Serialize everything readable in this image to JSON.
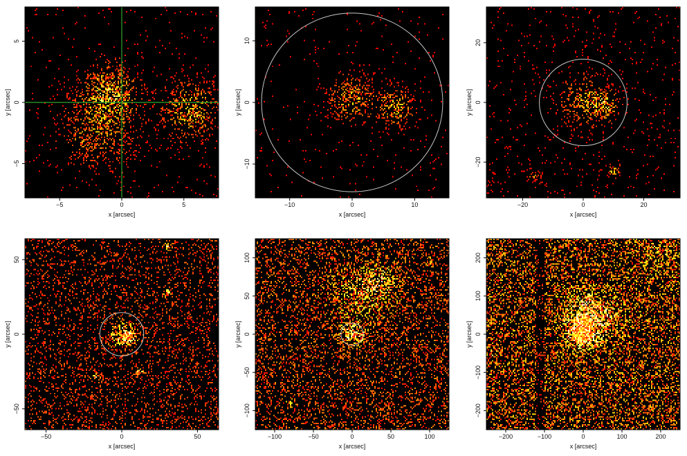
{
  "chart_data": [
    {
      "type": "image",
      "panel": "top-left",
      "xlabel": "x [arcsec]",
      "ylabel": "y [arcsec]",
      "xlim": [
        -7.8,
        7.8
      ],
      "ylim": [
        -7.8,
        7.8
      ],
      "xticks": [
        -5,
        0,
        5
      ],
      "yticks": [
        -5,
        0,
        5
      ],
      "overlay": {
        "kind": "crosshair",
        "x": 0,
        "y": 0,
        "color": "#2ea82e"
      },
      "background_level": 0.02,
      "sources": [
        {
          "x": -1.0,
          "y": 0.8,
          "sigma": 1.4,
          "amp": 0.5
        },
        {
          "x": 5.5,
          "y": -0.7,
          "sigma": 1.4,
          "amp": 0.45
        },
        {
          "x": -2.0,
          "y": -2.5,
          "sigma": 1.8,
          "amp": 0.3
        }
      ]
    },
    {
      "type": "image",
      "panel": "top-middle",
      "xlabel": "x [arcsec]",
      "ylabel": "y [arcsec]",
      "xlim": [
        -15.5,
        15.5
      ],
      "ylim": [
        -15.5,
        15.5
      ],
      "xticks": [
        -10,
        0,
        10
      ],
      "yticks": [
        -10,
        0,
        10
      ],
      "overlay": {
        "kind": "circle",
        "x": 0,
        "y": 0,
        "r": 14.5,
        "color": "#c8c8c8"
      },
      "background_level": 0.015,
      "sources": [
        {
          "x": 0,
          "y": 0.5,
          "sigma": 2.5,
          "amp": 0.35
        },
        {
          "x": 7.0,
          "y": -0.8,
          "sigma": 2.0,
          "amp": 0.4
        }
      ]
    },
    {
      "type": "image",
      "panel": "top-right",
      "xlabel": "x [arcsec]",
      "ylabel": "y [arcsec]",
      "xlim": [
        -32,
        32
      ],
      "ylim": [
        -32,
        32
      ],
      "xticks": [
        -20,
        0,
        20
      ],
      "yticks": [
        -20,
        0,
        20
      ],
      "overlay": {
        "kind": "circle",
        "x": 0,
        "y": 0,
        "r": 14.5,
        "color": "#c8c8c8"
      },
      "background_level": 0.03,
      "sources": [
        {
          "x": 0,
          "y": 0,
          "sigma": 5,
          "amp": 0.35
        },
        {
          "x": 7,
          "y": -1,
          "sigma": 3,
          "amp": 0.4
        },
        {
          "x": 10,
          "y": -23,
          "sigma": 1.2,
          "amp": 0.4
        },
        {
          "x": -16,
          "y": -25,
          "sigma": 1.2,
          "amp": 0.35
        }
      ]
    },
    {
      "type": "image",
      "panel": "bottom-left",
      "xlabel": "x [arcsec]",
      "ylabel": "y [arcsec]",
      "xlim": [
        -64,
        64
      ],
      "ylim": [
        -64,
        64
      ],
      "xticks": [
        -50,
        0,
        50
      ],
      "yticks": [
        -50,
        0,
        50
      ],
      "overlay": {
        "kind": "circle",
        "x": 0,
        "y": 0,
        "r": 14.5,
        "color": "#c8c8c8"
      },
      "background_level": 0.16,
      "sources": [
        {
          "x": 0,
          "y": 0,
          "sigma": 6,
          "amp": 0.5
        },
        {
          "x": 5,
          "y": -2,
          "sigma": 3,
          "amp": 0.55
        },
        {
          "x": 30,
          "y": 28,
          "sigma": 1.6,
          "amp": 0.55
        },
        {
          "x": 30,
          "y": 59,
          "sigma": 1.6,
          "amp": 0.55
        },
        {
          "x": -17,
          "y": -28,
          "sigma": 1.6,
          "amp": 0.5
        },
        {
          "x": 12,
          "y": -25,
          "sigma": 1.6,
          "amp": 0.5
        }
      ]
    },
    {
      "type": "image",
      "panel": "bottom-middle",
      "xlabel": "x [arcsec]",
      "ylabel": "y [arcsec]",
      "xlim": [
        -125,
        125
      ],
      "ylim": [
        -125,
        125
      ],
      "xticks": [
        -100,
        -50,
        0,
        50,
        100
      ],
      "yticks": [
        -100,
        -50,
        0,
        50,
        100
      ],
      "overlay": {
        "kind": "circle",
        "x": 0,
        "y": 0,
        "r": 14.5,
        "color": "#c8c8c8"
      },
      "background_level": 0.22,
      "sources": [
        {
          "x": 0,
          "y": 0,
          "sigma": 10,
          "amp": 0.55
        },
        {
          "x": 10,
          "y": 55,
          "sigma": 28,
          "amp": 0.3
        },
        {
          "x": 40,
          "y": 70,
          "sigma": 15,
          "amp": 0.25
        },
        {
          "x": 100,
          "y": 95,
          "sigma": 3,
          "amp": 0.5
        },
        {
          "x": -80,
          "y": -90,
          "sigma": 3,
          "amp": 0.45
        }
      ]
    },
    {
      "type": "image",
      "panel": "bottom-right",
      "xlabel": "x [arcsec]",
      "ylabel": "y [arcsec]",
      "xlim": [
        -250,
        250
      ],
      "ylim": [
        -250,
        250
      ],
      "xticks": [
        -200,
        -100,
        0,
        100,
        200
      ],
      "yticks": [
        -200,
        -100,
        0,
        100,
        200
      ],
      "overlay": {
        "kind": "none"
      },
      "background_level": 0.32,
      "dark_band": {
        "x": [
          -120,
          -100
        ]
      },
      "sources": [
        {
          "x": 0,
          "y": 5,
          "sigma": 30,
          "amp": 0.55
        },
        {
          "x": 5,
          "y": 60,
          "sigma": 35,
          "amp": 0.4
        },
        {
          "x": 60,
          "y": 40,
          "sigma": 40,
          "amp": 0.2
        },
        {
          "x": -230,
          "y": -50,
          "sigma": 8,
          "amp": 0.3
        },
        {
          "x": 200,
          "y": 215,
          "sigma": 45,
          "amp": 0.18
        }
      ]
    }
  ]
}
